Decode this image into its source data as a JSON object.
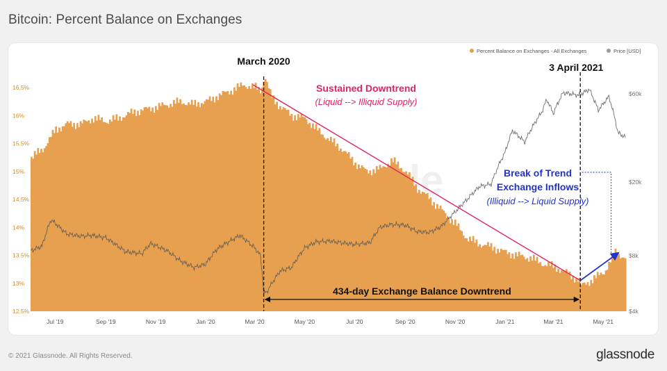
{
  "page": {
    "title": "Bitcoin: Percent Balance on Exchanges",
    "copyright": "© 2021 Glassnode. All Rights Reserved.",
    "brand": "glassnode",
    "watermark": "glassnode"
  },
  "colors": {
    "bar": "#e6a04f",
    "bar_dark": "#c98630",
    "price_line": "#555555",
    "trend_line": "#e0245e",
    "break_arrow": "#2233cc",
    "annotation_black": "#111111"
  },
  "chart_data": {
    "type": "bar",
    "title": "Bitcoin: Percent Balance on Exchanges",
    "legend": [
      {
        "name": "Percent Balance on Exchanges - All Exchanges",
        "color": "#e6a04f"
      },
      {
        "name": "Price [USD]",
        "color": "#999999"
      }
    ],
    "x_range": [
      "2019-06-01",
      "2021-05-28"
    ],
    "x_ticks": [
      {
        "label": "Jul '19",
        "date": "2019-07-01"
      },
      {
        "label": "Sep '19",
        "date": "2019-09-01"
      },
      {
        "label": "Nov '19",
        "date": "2019-11-01"
      },
      {
        "label": "Jan '20",
        "date": "2020-01-01"
      },
      {
        "label": "Mar '20",
        "date": "2020-03-01"
      },
      {
        "label": "May '20",
        "date": "2020-05-01"
      },
      {
        "label": "Jul '20",
        "date": "2020-07-01"
      },
      {
        "label": "Sep '20",
        "date": "2020-09-01"
      },
      {
        "label": "Nov '20",
        "date": "2020-11-01"
      },
      {
        "label": "Jan '21",
        "date": "2021-01-01"
      },
      {
        "label": "Mar '21",
        "date": "2021-03-01"
      },
      {
        "label": "May '21",
        "date": "2021-05-01"
      }
    ],
    "y_left": {
      "ylim": [
        12.5,
        16.8
      ],
      "ticks": [
        {
          "label": "16.5%",
          "value": 16.5
        },
        {
          "label": "16%",
          "value": 16.0
        },
        {
          "label": "15.5%",
          "value": 15.5
        },
        {
          "label": "15%",
          "value": 15.0
        },
        {
          "label": "14.5%",
          "value": 14.5
        },
        {
          "label": "14%",
          "value": 14.0
        },
        {
          "label": "13.5%",
          "value": 13.5
        },
        {
          "label": "13%",
          "value": 13.0
        },
        {
          "label": "12.5%",
          "value": 12.5
        }
      ]
    },
    "y_right": {
      "scale": "log",
      "ylim": [
        4000,
        80000
      ],
      "ticks": [
        {
          "label": "$60k",
          "value": 60000
        },
        {
          "label": "$20k",
          "value": 20000
        },
        {
          "label": "$8k",
          "value": 8000
        },
        {
          "label": "$4k",
          "value": 4000
        }
      ]
    },
    "series": [
      {
        "name": "Percent Balance on Exchanges - All Exchanges",
        "axis": "left",
        "points": [
          [
            "2019-06-01",
            15.25
          ],
          [
            "2019-06-15",
            15.4
          ],
          [
            "2019-07-01",
            15.75
          ],
          [
            "2019-07-15",
            15.85
          ],
          [
            "2019-08-01",
            15.85
          ],
          [
            "2019-08-15",
            15.95
          ],
          [
            "2019-09-01",
            15.9
          ],
          [
            "2019-09-15",
            15.95
          ],
          [
            "2019-10-01",
            16.05
          ],
          [
            "2019-10-15",
            16.1
          ],
          [
            "2019-11-01",
            16.15
          ],
          [
            "2019-11-15",
            16.2
          ],
          [
            "2019-12-01",
            16.25
          ],
          [
            "2019-12-15",
            16.2
          ],
          [
            "2020-01-01",
            16.25
          ],
          [
            "2020-01-15",
            16.35
          ],
          [
            "2020-02-01",
            16.45
          ],
          [
            "2020-02-15",
            16.55
          ],
          [
            "2020-03-01",
            16.5
          ],
          [
            "2020-03-08",
            16.45
          ],
          [
            "2020-03-12",
            16.72
          ],
          [
            "2020-03-20",
            16.35
          ],
          [
            "2020-04-01",
            16.15
          ],
          [
            "2020-04-15",
            16.0
          ],
          [
            "2020-05-01",
            15.95
          ],
          [
            "2020-05-15",
            15.75
          ],
          [
            "2020-06-01",
            15.55
          ],
          [
            "2020-06-15",
            15.4
          ],
          [
            "2020-07-01",
            15.15
          ],
          [
            "2020-07-15",
            15.0
          ],
          [
            "2020-08-01",
            15.05
          ],
          [
            "2020-08-15",
            15.2
          ],
          [
            "2020-09-01",
            15.0
          ],
          [
            "2020-09-15",
            14.7
          ],
          [
            "2020-10-01",
            14.5
          ],
          [
            "2020-10-15",
            14.3
          ],
          [
            "2020-11-01",
            14.05
          ],
          [
            "2020-11-15",
            13.8
          ],
          [
            "2020-12-01",
            13.7
          ],
          [
            "2020-12-15",
            13.65
          ],
          [
            "2021-01-01",
            13.55
          ],
          [
            "2021-01-15",
            13.5
          ],
          [
            "2021-02-01",
            13.45
          ],
          [
            "2021-02-15",
            13.35
          ],
          [
            "2021-03-01",
            13.3
          ],
          [
            "2021-03-15",
            13.2
          ],
          [
            "2021-04-01",
            13.05
          ],
          [
            "2021-04-03",
            12.95
          ],
          [
            "2021-04-15",
            13.05
          ],
          [
            "2021-05-01",
            13.2
          ],
          [
            "2021-05-15",
            13.55
          ],
          [
            "2021-05-28",
            13.45
          ]
        ]
      },
      {
        "name": "Price [USD]",
        "axis": "right",
        "points": [
          [
            "2019-06-01",
            8500
          ],
          [
            "2019-06-15",
            9000
          ],
          [
            "2019-06-26",
            12500
          ],
          [
            "2019-07-15",
            10500
          ],
          [
            "2019-08-01",
            10200
          ],
          [
            "2019-08-15",
            10300
          ],
          [
            "2019-09-01",
            10000
          ],
          [
            "2019-09-25",
            8400
          ],
          [
            "2019-10-15",
            8200
          ],
          [
            "2019-10-26",
            9300
          ],
          [
            "2019-11-15",
            8500
          ],
          [
            "2019-12-01",
            7500
          ],
          [
            "2019-12-18",
            6900
          ],
          [
            "2020-01-01",
            7200
          ],
          [
            "2020-01-15",
            8700
          ],
          [
            "2020-02-12",
            10300
          ],
          [
            "2020-03-01",
            8800
          ],
          [
            "2020-03-08",
            8000
          ],
          [
            "2020-03-12",
            5000
          ],
          [
            "2020-03-16",
            5100
          ],
          [
            "2020-04-01",
            6600
          ],
          [
            "2020-04-15",
            6900
          ],
          [
            "2020-05-01",
            8800
          ],
          [
            "2020-05-15",
            9500
          ],
          [
            "2020-06-01",
            9600
          ],
          [
            "2020-06-15",
            9400
          ],
          [
            "2020-07-01",
            9200
          ],
          [
            "2020-07-20",
            9400
          ],
          [
            "2020-08-01",
            11400
          ],
          [
            "2020-08-15",
            11800
          ],
          [
            "2020-09-01",
            11700
          ],
          [
            "2020-09-15",
            10800
          ],
          [
            "2020-10-01",
            10700
          ],
          [
            "2020-10-15",
            11500
          ],
          [
            "2020-11-01",
            13800
          ],
          [
            "2020-11-15",
            16000
          ],
          [
            "2020-12-01",
            19000
          ],
          [
            "2020-12-15",
            19500
          ],
          [
            "2021-01-01",
            29000
          ],
          [
            "2021-01-10",
            38000
          ],
          [
            "2021-01-25",
            33000
          ],
          [
            "2021-02-15",
            48000
          ],
          [
            "2021-02-21",
            56000
          ],
          [
            "2021-03-01",
            47000
          ],
          [
            "2021-03-13",
            61000
          ],
          [
            "2021-04-01",
            59000
          ],
          [
            "2021-04-14",
            63500
          ],
          [
            "2021-04-25",
            49000
          ],
          [
            "2021-05-08",
            58000
          ],
          [
            "2021-05-19",
            37000
          ],
          [
            "2021-05-28",
            35000
          ]
        ]
      }
    ],
    "annotations": {
      "march_label": "March 2020",
      "april_label": "3 April 2021",
      "march_date": "2020-03-12",
      "april_date": "2021-04-03",
      "downtrend_title": "Sustained Downtrend",
      "downtrend_sub": "(Liquid --> Illiquid Supply)",
      "break_title_1": "Break of Trend",
      "break_title_2": "Exchange Inflows",
      "break_sub": "(Illiquid --> Liquid Supply)",
      "span_label": "434-day Exchange Balance Downtrend",
      "trend_line": [
        [
          "2020-02-28",
          16.55
        ],
        [
          "2021-04-03",
          13.05
        ]
      ],
      "break_arrow": [
        [
          "2021-04-03",
          13.05
        ],
        [
          "2021-05-20",
          13.55
        ]
      ]
    }
  }
}
